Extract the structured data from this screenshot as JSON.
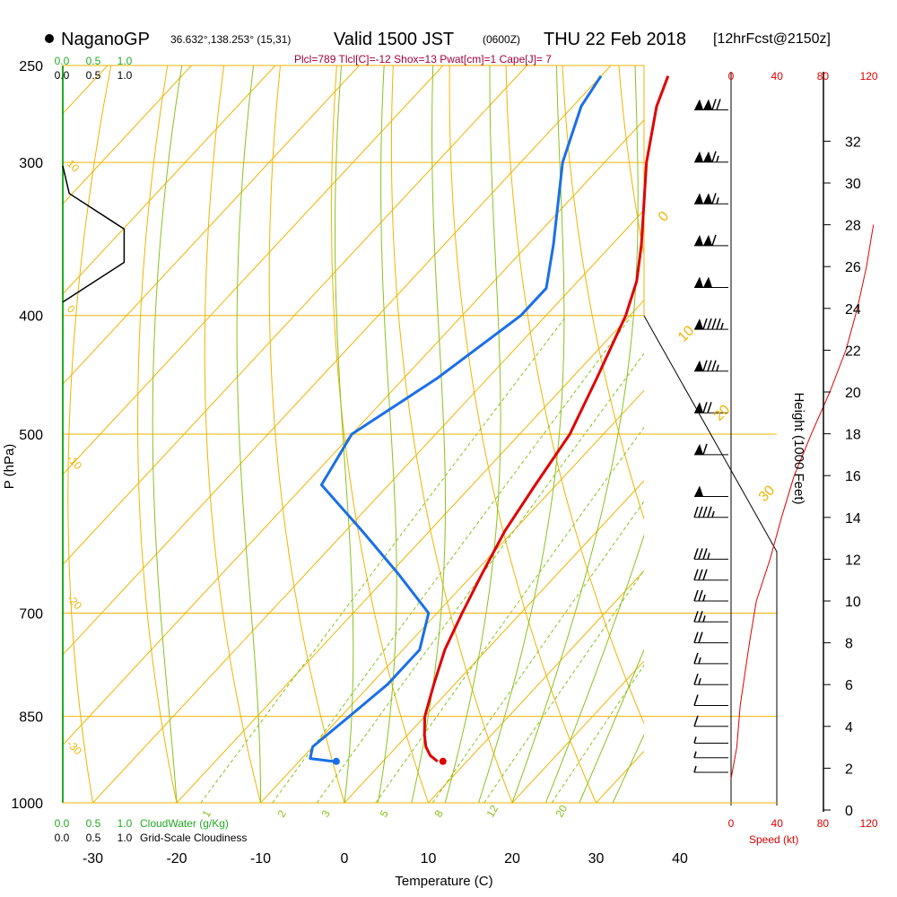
{
  "header": {
    "station": "NaganoGP",
    "coords": "36.632°,138.253° (15,31)",
    "valid": "Valid 1500 JST",
    "zulu": "(0600Z)",
    "date": "THU 22 Feb 2018",
    "forecast": "[12hrFcst@2150z]",
    "indices": "Plcl=789 Tlcl[C]=-12 Shox=13 Pwat[cm]=1 Cape[J]= 7"
  },
  "colors": {
    "temperature": "#e00000",
    "dewpoint": "#1a6fe8",
    "isotherm": "#f0b400",
    "dry_adiabat": "#f0b400",
    "moist_adiabat": "#88c21c",
    "mixing_ratio": "#88c21c",
    "cloudwater": "#22aa22",
    "speed": "#dd0000",
    "indices": "#a0003c"
  },
  "chart_data": {
    "type": "line",
    "xlabel": "Temperature (C)",
    "ylabel": "P (hPa)",
    "right_label": "Height (1000 Feet)",
    "x_ticks": [
      -30,
      -20,
      -10,
      0,
      10,
      20,
      30,
      40
    ],
    "pressure_ticks": [
      250,
      300,
      400,
      500,
      700,
      850,
      1000
    ],
    "height_ticks": [
      0,
      2,
      4,
      6,
      8,
      10,
      12,
      14,
      16,
      18,
      20,
      22,
      24,
      26,
      28,
      30,
      32
    ],
    "speed_ticks": [
      0,
      40,
      80,
      120
    ],
    "speed_label": "Speed (kt)",
    "cloudwater_ticks": [
      "0.0",
      "0.5",
      "1.0"
    ],
    "cloudwater_label": "CloudWater (g/Kg)",
    "cloudiness_ticks": [
      "0.0",
      "0.5",
      "1.0"
    ],
    "cloudiness_label": "Grid-Scale Cloudiness",
    "isotherm_labels": [
      "-10",
      "0",
      "10",
      "20",
      "30"
    ],
    "adiabat_labels": [
      "10",
      "0",
      "-10",
      "-20",
      "-30"
    ],
    "mixing_ratio_labels": [
      "1",
      "2",
      "3",
      "5",
      "8",
      "12",
      "20"
    ],
    "series": [
      {
        "name": "Temperature",
        "points": [
          {
            "p": 925,
            "t": 6.5
          },
          {
            "p": 915,
            "t": 5
          },
          {
            "p": 900,
            "t": 3.5
          },
          {
            "p": 880,
            "t": 2
          },
          {
            "p": 850,
            "t": 0
          },
          {
            "p": 800,
            "t": -2.5
          },
          {
            "p": 750,
            "t": -5
          },
          {
            "p": 700,
            "t": -7
          },
          {
            "p": 650,
            "t": -9
          },
          {
            "p": 600,
            "t": -11
          },
          {
            "p": 550,
            "t": -12.5
          },
          {
            "p": 500,
            "t": -14
          },
          {
            "p": 450,
            "t": -17
          },
          {
            "p": 400,
            "t": -20.5
          },
          {
            "p": 375,
            "t": -23
          },
          {
            "p": 350,
            "t": -26.5
          },
          {
            "p": 300,
            "t": -35
          },
          {
            "p": 270,
            "t": -40
          },
          {
            "p": 255,
            "t": -42
          }
        ]
      },
      {
        "name": "Dewpoint",
        "points": [
          {
            "p": 925,
            "t": -6
          },
          {
            "p": 920,
            "t": -9
          },
          {
            "p": 900,
            "t": -10
          },
          {
            "p": 850,
            "t": -9
          },
          {
            "p": 800,
            "t": -8
          },
          {
            "p": 750,
            "t": -8
          },
          {
            "p": 700,
            "t": -11
          },
          {
            "p": 650,
            "t": -19
          },
          {
            "p": 600,
            "t": -28
          },
          {
            "p": 550,
            "t": -38
          },
          {
            "p": 500,
            "t": -40
          },
          {
            "p": 450,
            "t": -36
          },
          {
            "p": 400,
            "t": -33
          },
          {
            "p": 380,
            "t": -33
          },
          {
            "p": 350,
            "t": -37
          },
          {
            "p": 300,
            "t": -45
          },
          {
            "p": 270,
            "t": -49
          },
          {
            "p": 255,
            "t": -50
          }
        ]
      },
      {
        "name": "Grid-Scale Cloudiness",
        "points": [
          {
            "p": 302,
            "c": 0.0
          },
          {
            "p": 318,
            "c": 0.1
          },
          {
            "p": 340,
            "c": 0.95
          },
          {
            "p": 362,
            "c": 0.95
          },
          {
            "p": 390,
            "c": 0.0
          }
        ]
      },
      {
        "name": "Speed (kt)",
        "points": [
          {
            "z": 1.5,
            "v": 0
          },
          {
            "z": 3,
            "v": 5
          },
          {
            "z": 5,
            "v": 8
          },
          {
            "z": 8,
            "v": 16
          },
          {
            "z": 10,
            "v": 22
          },
          {
            "z": 12,
            "v": 34
          },
          {
            "z": 14,
            "v": 44
          },
          {
            "z": 16,
            "v": 55
          },
          {
            "z": 18,
            "v": 70
          },
          {
            "z": 20,
            "v": 86
          },
          {
            "z": 22,
            "v": 100
          },
          {
            "z": 24,
            "v": 110
          },
          {
            "z": 26,
            "v": 118
          },
          {
            "z": 28,
            "v": 124
          }
        ]
      },
      {
        "name": "Wind direction",
        "barbs": [
          {
            "z": 1.8,
            "kt": 5,
            "dir": 300
          },
          {
            "z": 2.5,
            "kt": 5,
            "dir": 280
          },
          {
            "z": 3.2,
            "kt": 5,
            "dir": 270
          },
          {
            "z": 4,
            "kt": 10,
            "dir": 270
          },
          {
            "z": 5,
            "kt": 10,
            "dir": 270
          },
          {
            "z": 6,
            "kt": 15,
            "dir": 270
          },
          {
            "z": 7,
            "kt": 15,
            "dir": 270
          },
          {
            "z": 8,
            "kt": 20,
            "dir": 270
          },
          {
            "z": 9,
            "kt": 25,
            "dir": 270
          },
          {
            "z": 10,
            "kt": 25,
            "dir": 270
          },
          {
            "z": 11,
            "kt": 30,
            "dir": 270
          },
          {
            "z": 12,
            "kt": 35,
            "dir": 270
          },
          {
            "z": 14,
            "kt": 45,
            "dir": 270
          },
          {
            "z": 15,
            "kt": 50,
            "dir": 270
          },
          {
            "z": 17,
            "kt": 60,
            "dir": 270
          },
          {
            "z": 19,
            "kt": 70,
            "dir": 270
          },
          {
            "z": 21,
            "kt": 85,
            "dir": 270
          },
          {
            "z": 23,
            "kt": 95,
            "dir": 270
          },
          {
            "z": 25,
            "kt": 100,
            "dir": 270
          },
          {
            "z": 27,
            "kt": 110,
            "dir": 270
          },
          {
            "z": 29,
            "kt": 115,
            "dir": 270
          },
          {
            "z": 31,
            "kt": 115,
            "dir": 270
          },
          {
            "z": 33.5,
            "kt": 120,
            "dir": 270
          }
        ]
      }
    ]
  }
}
